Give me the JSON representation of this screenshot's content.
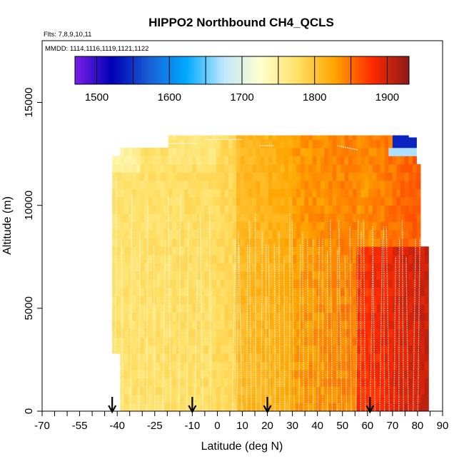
{
  "chart_data": {
    "type": "heatmap",
    "title": "HIPPO2 Northbound CH4_QCLS",
    "flights_note": "Flts: 7,8,9,10,11",
    "mmdd_note": "MMDD: 1114,1116,1119,1121,1122",
    "xlabel": "Latitude (deg N)",
    "ylabel": "Altitude (m)",
    "xlim": [
      -70,
      90
    ],
    "ylim": [
      0,
      18000
    ],
    "x_ticks": [
      -70,
      -55,
      -40,
      -25,
      -10,
      0,
      10,
      20,
      30,
      40,
      50,
      60,
      70,
      80,
      90
    ],
    "x_minor_ticks": [
      -65,
      -60,
      -50,
      -45,
      -35,
      -30,
      -20,
      -15,
      -5,
      5,
      15,
      25,
      35,
      45,
      55,
      65,
      75,
      85
    ],
    "y_ticks": [
      0,
      5000,
      10000,
      15000
    ],
    "colorbar": {
      "range": [
        1470,
        1930
      ],
      "ticks": [
        1500,
        1600,
        1700,
        1800,
        1900
      ],
      "boundaries": [
        1500,
        1550,
        1600,
        1650,
        1700,
        1750,
        1800,
        1850,
        1900
      ],
      "colors": [
        "#7a1fe8",
        "#0000b5",
        "#1a5fd6",
        "#00aaff",
        "#bfe6ff",
        "#ffffcc",
        "#ffe066",
        "#ffa500",
        "#ff2a00",
        "#8b1a1a"
      ]
    },
    "profile_arrows_lat": [
      -42,
      -10,
      20,
      61
    ],
    "region_summary": [
      {
        "lat_range": [
          -42,
          0
        ],
        "alt_range": [
          0,
          12800
        ],
        "ch4_ppb": 1775
      },
      {
        "lat_range": [
          0,
          7
        ],
        "alt_range": [
          0,
          12800
        ],
        "ch4_ppb": 1785
      },
      {
        "lat_range": [
          7,
          30
        ],
        "alt_range": [
          0,
          12800
        ],
        "ch4_ppb": 1815
      },
      {
        "lat_range": [
          30,
          60
        ],
        "alt_range": [
          0,
          12800
        ],
        "ch4_ppb": 1840
      },
      {
        "lat_range": [
          60,
          84
        ],
        "alt_range": [
          0,
          8000
        ],
        "ch4_ppb": 1880
      },
      {
        "lat_range": [
          70,
          80
        ],
        "alt_range": [
          12500,
          13200
        ],
        "ch4_ppb": 1540
      }
    ]
  }
}
